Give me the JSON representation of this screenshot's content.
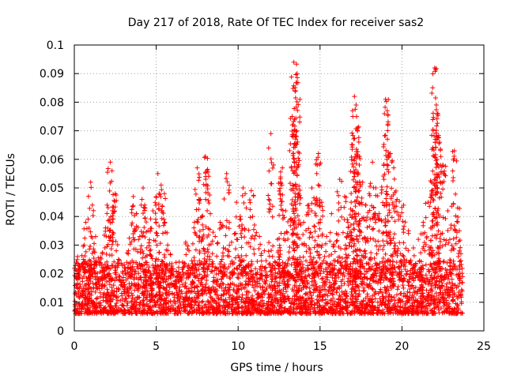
{
  "chart_data": {
    "type": "scatter",
    "title": "Day 217 of 2018, Rate Of TEC Index for receiver sas2",
    "xlabel": "GPS time / hours",
    "ylabel": "ROTI / TECUs",
    "xlim": [
      0,
      25
    ],
    "ylim": [
      0,
      0.1
    ],
    "x_ticks": [
      0,
      5,
      10,
      15,
      20,
      25
    ],
    "x_tick_labels": [
      "0",
      "5",
      "10",
      "15",
      "20",
      "25"
    ],
    "y_ticks": [
      0,
      0.01,
      0.02,
      0.03,
      0.04,
      0.05,
      0.06,
      0.07,
      0.08,
      0.09,
      0.1
    ],
    "y_tick_labels": [
      "0",
      "0.01",
      "0.02",
      "0.03",
      "0.04",
      "0.05",
      "0.06",
      "0.07",
      "0.08",
      "0.09",
      "0.1"
    ],
    "grid": true,
    "marker": "+",
    "marker_color": "#ff0000",
    "series": [
      {
        "name": "ROTI",
        "points": [
          [
            0.1,
            0.019
          ],
          [
            0.2,
            0.026
          ],
          [
            0.4,
            0.012
          ],
          [
            0.6,
            0.03
          ],
          [
            0.7,
            0.038
          ],
          [
            0.9,
            0.021
          ],
          [
            1.0,
            0.052
          ],
          [
            1.1,
            0.044
          ],
          [
            1.3,
            0.033
          ],
          [
            1.5,
            0.018
          ],
          [
            1.7,
            0.027
          ],
          [
            1.9,
            0.036
          ],
          [
            2.0,
            0.044
          ],
          [
            2.2,
            0.059
          ],
          [
            2.3,
            0.056
          ],
          [
            2.5,
            0.048
          ],
          [
            2.7,
            0.025
          ],
          [
            2.9,
            0.016
          ],
          [
            3.1,
            0.021
          ],
          [
            3.3,
            0.028
          ],
          [
            3.5,
            0.037
          ],
          [
            3.6,
            0.047
          ],
          [
            3.8,
            0.041
          ],
          [
            4.0,
            0.033
          ],
          [
            4.2,
            0.05
          ],
          [
            4.3,
            0.044
          ],
          [
            4.5,
            0.035
          ],
          [
            4.6,
            0.028
          ],
          [
            4.8,
            0.042
          ],
          [
            5.0,
            0.038
          ],
          [
            5.1,
            0.055
          ],
          [
            5.3,
            0.051
          ],
          [
            5.5,
            0.048
          ],
          [
            5.7,
            0.03
          ],
          [
            5.9,
            0.022
          ],
          [
            6.1,
            0.016
          ],
          [
            6.4,
            0.019
          ],
          [
            6.6,
            0.024
          ],
          [
            6.8,
            0.031
          ],
          [
            7.0,
            0.028
          ],
          [
            7.3,
            0.036
          ],
          [
            7.5,
            0.057
          ],
          [
            7.6,
            0.046
          ],
          [
            7.8,
            0.04
          ],
          [
            8.0,
            0.061
          ],
          [
            8.1,
            0.056
          ],
          [
            8.3,
            0.041
          ],
          [
            8.6,
            0.033
          ],
          [
            8.9,
            0.038
          ],
          [
            9.1,
            0.029
          ],
          [
            9.3,
            0.055
          ],
          [
            9.6,
            0.031
          ],
          [
            9.9,
            0.045
          ],
          [
            10.1,
            0.039
          ],
          [
            10.3,
            0.05
          ],
          [
            10.5,
            0.043
          ],
          [
            10.8,
            0.049
          ],
          [
            11.0,
            0.037
          ],
          [
            11.3,
            0.033
          ],
          [
            11.6,
            0.028
          ],
          [
            12.0,
            0.069
          ],
          [
            12.1,
            0.026
          ],
          [
            12.4,
            0.032
          ],
          [
            12.6,
            0.052
          ],
          [
            12.7,
            0.057
          ],
          [
            12.9,
            0.042
          ],
          [
            13.2,
            0.039
          ],
          [
            13.3,
            0.075
          ],
          [
            13.4,
            0.094
          ],
          [
            13.5,
            0.084
          ],
          [
            13.6,
            0.09
          ],
          [
            13.5,
            0.065
          ],
          [
            13.7,
            0.048
          ],
          [
            14.0,
            0.038
          ],
          [
            14.3,
            0.044
          ],
          [
            14.5,
            0.05
          ],
          [
            14.8,
            0.055
          ],
          [
            14.9,
            0.062
          ],
          [
            15.1,
            0.045
          ],
          [
            15.4,
            0.033
          ],
          [
            15.7,
            0.041
          ],
          [
            16.0,
            0.034
          ],
          [
            16.2,
            0.053
          ],
          [
            16.5,
            0.047
          ],
          [
            16.7,
            0.038
          ],
          [
            16.9,
            0.045
          ],
          [
            17.0,
            0.075
          ],
          [
            17.1,
            0.082
          ],
          [
            17.2,
            0.079
          ],
          [
            17.3,
            0.071
          ],
          [
            17.4,
            0.058
          ],
          [
            17.6,
            0.052
          ],
          [
            17.8,
            0.044
          ],
          [
            18.0,
            0.048
          ],
          [
            18.2,
            0.059
          ],
          [
            18.4,
            0.05
          ],
          [
            18.6,
            0.041
          ],
          [
            18.9,
            0.053
          ],
          [
            19.0,
            0.081
          ],
          [
            19.1,
            0.077
          ],
          [
            19.3,
            0.062
          ],
          [
            19.5,
            0.057
          ],
          [
            19.7,
            0.046
          ],
          [
            19.9,
            0.04
          ],
          [
            20.1,
            0.044
          ],
          [
            20.4,
            0.035
          ],
          [
            20.7,
            0.029
          ],
          [
            21.0,
            0.032
          ],
          [
            21.3,
            0.038
          ],
          [
            21.6,
            0.045
          ],
          [
            21.8,
            0.052
          ],
          [
            21.9,
            0.07
          ],
          [
            22.0,
            0.092
          ],
          [
            22.1,
            0.079
          ],
          [
            22.2,
            0.076
          ],
          [
            22.3,
            0.066
          ],
          [
            22.5,
            0.058
          ],
          [
            22.8,
            0.042
          ],
          [
            23.0,
            0.037
          ],
          [
            23.2,
            0.063
          ],
          [
            23.4,
            0.043
          ],
          [
            23.5,
            0.035
          ],
          [
            23.6,
            0.027
          ]
        ],
        "band": {
          "x_start": 0,
          "x_end": 23.7,
          "typical_low": 0.006,
          "typical_high": 0.022
        }
      }
    ]
  }
}
